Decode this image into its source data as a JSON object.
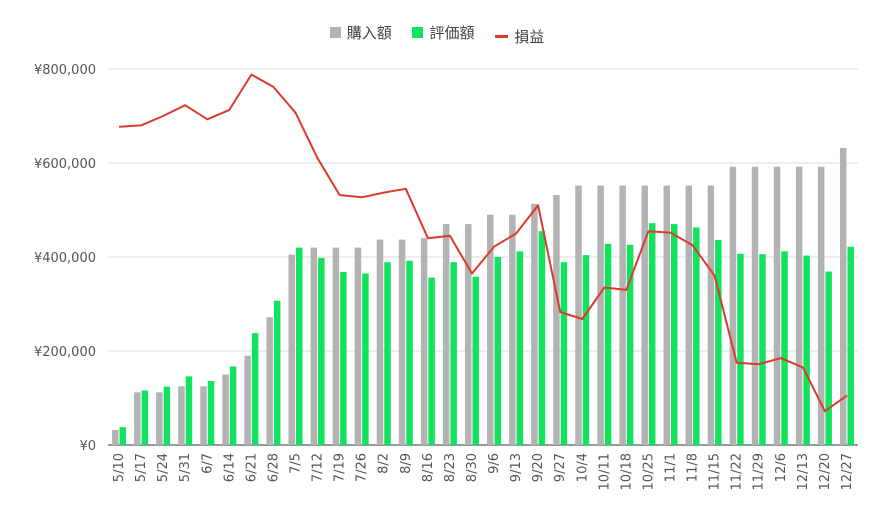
{
  "chart_data": {
    "type": "bar",
    "categories": [
      "5/10",
      "5/17",
      "5/24",
      "5/31",
      "6/7",
      "6/14",
      "6/21",
      "6/28",
      "7/5",
      "7/12",
      "7/19",
      "7/26",
      "8/2",
      "8/9",
      "8/16",
      "8/23",
      "8/30",
      "9/6",
      "9/13",
      "9/20",
      "9/27",
      "10/4",
      "10/11",
      "10/18",
      "10/25",
      "11/1",
      "11/8",
      "11/15",
      "11/22",
      "11/29",
      "12/6",
      "12/13",
      "12/20",
      "12/27"
    ],
    "series": [
      {
        "name": "購入額",
        "type": "bar",
        "color": "#b3b3b3",
        "values": [
          32000,
          112000,
          112000,
          125000,
          125000,
          150000,
          190000,
          272000,
          405000,
          420000,
          420000,
          420000,
          437000,
          437000,
          440000,
          470000,
          470000,
          490000,
          490000,
          513000,
          532000,
          552000,
          552000,
          552000,
          552000,
          552000,
          552000,
          552000,
          592000,
          592000,
          592000,
          592000,
          592000,
          632000
        ]
      },
      {
        "name": "評価額",
        "type": "bar",
        "color": "#12e35f",
        "values": [
          38000,
          116000,
          124000,
          146000,
          136000,
          167000,
          238000,
          307000,
          420000,
          398000,
          368000,
          365000,
          389000,
          392000,
          356000,
          389000,
          358000,
          400000,
          412000,
          455000,
          389000,
          404000,
          428000,
          426000,
          472000,
          470000,
          463000,
          436000,
          407000,
          406000,
          412000,
          403000,
          369000,
          422000
        ]
      },
      {
        "name": "損益",
        "type": "line",
        "color": "#db3a2e",
        "values": [
          677000,
          680000,
          700000,
          723000,
          693000,
          713000,
          788000,
          762000,
          707000,
          610000,
          532000,
          527000,
          537000,
          545000,
          440000,
          445000,
          365000,
          422000,
          450000,
          510000,
          283000,
          268000,
          335000,
          330000,
          455000,
          452000,
          425000,
          360000,
          175000,
          172000,
          185000,
          165000,
          72000,
          105000
        ]
      }
    ],
    "ylim": [
      0,
      800000
    ],
    "yticks": [
      "¥0",
      "¥200,000",
      "¥400,000",
      "¥600,000",
      "¥800,000"
    ],
    "ytick_values": [
      0,
      200000,
      400000,
      600000,
      800000
    ],
    "grid": true,
    "legend_position": "top-center",
    "colors": {
      "grid": "#dcdcdc",
      "axis_text": "#555555"
    }
  }
}
